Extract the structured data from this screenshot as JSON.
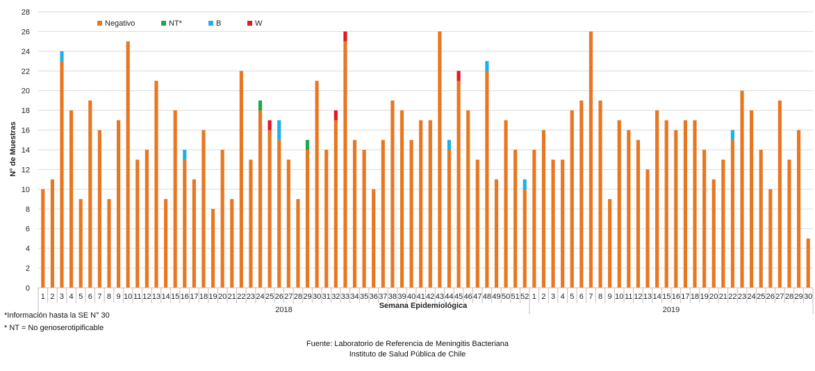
{
  "chart_data": {
    "type": "bar",
    "stacked": true,
    "ylabel": "N° de Muestras",
    "xlabel": "Semana Epidemiológica",
    "ylim": [
      0,
      28
    ],
    "y_ticks": [
      0,
      2,
      4,
      6,
      8,
      10,
      12,
      14,
      16,
      18,
      20,
      22,
      24,
      26,
      28
    ],
    "grid": "horizontal",
    "legend_position": "top-left",
    "colors": {
      "Negativo": "#E87722",
      "NT*": "#1EA84A",
      "B": "#1FB0E8",
      "W": "#E8141E"
    },
    "groups": [
      {
        "label": "2018",
        "weeks": 52
      },
      {
        "label": "2019",
        "weeks": 30
      }
    ],
    "categories": [
      "1",
      "2",
      "3",
      "4",
      "5",
      "6",
      "7",
      "8",
      "9",
      "10",
      "11",
      "12",
      "13",
      "14",
      "15",
      "16",
      "17",
      "18",
      "19",
      "20",
      "21",
      "22",
      "23",
      "24",
      "25",
      "26",
      "27",
      "28",
      "29",
      "30",
      "31",
      "32",
      "33",
      "34",
      "35",
      "36",
      "37",
      "38",
      "39",
      "40",
      "41",
      "42",
      "43",
      "44",
      "45",
      "46",
      "47",
      "48",
      "49",
      "50",
      "51",
      "52",
      "1",
      "2",
      "3",
      "4",
      "5",
      "6",
      "7",
      "8",
      "9",
      "10",
      "11",
      "12",
      "13",
      "14",
      "15",
      "16",
      "17",
      "18",
      "19",
      "20",
      "21",
      "22",
      "23",
      "24",
      "25",
      "26",
      "27",
      "28",
      "29",
      "30"
    ],
    "series": [
      {
        "name": "Negativo",
        "values": [
          10,
          11,
          23,
          18,
          9,
          19,
          16,
          9,
          17,
          25,
          13,
          14,
          21,
          9,
          18,
          13,
          11,
          16,
          8,
          14,
          9,
          22,
          13,
          18,
          16,
          15,
          13,
          9,
          14,
          21,
          14,
          17,
          25,
          15,
          14,
          10,
          15,
          19,
          18,
          15,
          17,
          17,
          26,
          14,
          21,
          18,
          13,
          22,
          11,
          17,
          14,
          10,
          14,
          16,
          13,
          13,
          18,
          19,
          26,
          19,
          9,
          17,
          16,
          15,
          12,
          18,
          17,
          16,
          17,
          17,
          14,
          11,
          13,
          15,
          20,
          18,
          14,
          10,
          19,
          13,
          16,
          5
        ]
      },
      {
        "name": "NT*",
        "values": [
          0,
          0,
          0,
          0,
          0,
          0,
          0,
          0,
          0,
          0,
          0,
          0,
          0,
          0,
          0,
          0,
          0,
          0,
          0,
          0,
          0,
          0,
          0,
          1,
          0,
          0,
          0,
          0,
          1,
          0,
          0,
          0,
          0,
          0,
          0,
          0,
          0,
          0,
          0,
          0,
          0,
          0,
          0,
          0,
          0,
          0,
          0,
          0,
          0,
          0,
          0,
          0,
          0,
          0,
          0,
          0,
          0,
          0,
          0,
          0,
          0,
          0,
          0,
          0,
          0,
          0,
          0,
          0,
          0,
          0,
          0,
          0,
          0,
          0,
          0,
          0,
          0,
          0,
          0,
          0,
          0,
          0
        ]
      },
      {
        "name": "B",
        "values": [
          0,
          0,
          1,
          0,
          0,
          0,
          0,
          0,
          0,
          0,
          0,
          0,
          0,
          0,
          0,
          1,
          0,
          0,
          0,
          0,
          0,
          0,
          0,
          0,
          0,
          2,
          0,
          0,
          0,
          0,
          0,
          0,
          0,
          0,
          0,
          0,
          0,
          0,
          0,
          0,
          0,
          0,
          0,
          1,
          0,
          0,
          0,
          1,
          0,
          0,
          0,
          1,
          0,
          0,
          0,
          0,
          0,
          0,
          0,
          0,
          0,
          0,
          0,
          0,
          0,
          0,
          0,
          0,
          0,
          0,
          0,
          0,
          0,
          1,
          0,
          0,
          0,
          0,
          0,
          0,
          0,
          0
        ]
      },
      {
        "name": "W",
        "values": [
          0,
          0,
          0,
          0,
          0,
          0,
          0,
          0,
          0,
          0,
          0,
          0,
          0,
          0,
          0,
          0,
          0,
          0,
          0,
          0,
          0,
          0,
          0,
          0,
          1,
          0,
          0,
          0,
          0,
          0,
          0,
          1,
          1,
          0,
          0,
          0,
          0,
          0,
          0,
          0,
          0,
          0,
          0,
          0,
          1,
          0,
          0,
          0,
          0,
          0,
          0,
          0,
          0,
          0,
          0,
          0,
          0,
          0,
          0,
          0,
          0,
          0,
          0,
          0,
          0,
          0,
          0,
          0,
          0,
          0,
          0,
          0,
          0,
          0,
          0,
          0,
          0,
          0,
          0,
          0,
          0,
          0
        ]
      }
    ]
  },
  "footnotes": {
    "note1": "*Información  hasta la SE N° 30",
    "note2": "* NT = No genoserotipificable"
  },
  "source": {
    "line1": "Fuente: Laboratorio de Referencia  de Meningitis Bacteriana",
    "line2": "Instituto de Salud Pública de Chile"
  }
}
